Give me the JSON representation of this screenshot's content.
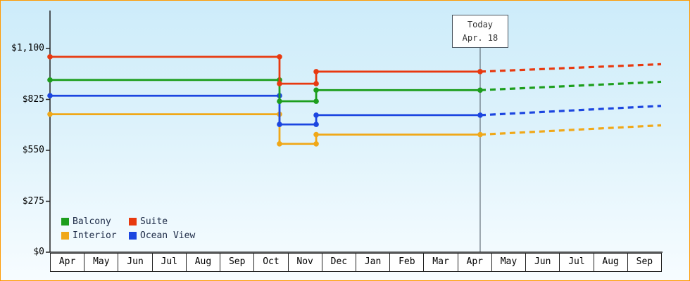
{
  "frame": {
    "border_color": "#ff9900",
    "background_top": "#cdecfa",
    "background_bottom": "#f7fcff"
  },
  "legend": {
    "items": [
      {
        "label": "Balcony",
        "color": "#1d9e1d"
      },
      {
        "label": "Suite",
        "color": "#e8390f"
      },
      {
        "label": "Interior",
        "color": "#f0a818"
      },
      {
        "label": "Ocean View",
        "color": "#1c46e0"
      }
    ]
  },
  "chart_data": {
    "type": "line",
    "subtype": "step-with-dashed-projection",
    "title": "",
    "xlabel": "",
    "ylabel": "",
    "x_axis": {
      "months": [
        "Apr",
        "May",
        "Jun",
        "Jul",
        "Aug",
        "Sep",
        "Oct",
        "Nov",
        "Dec",
        "Jan",
        "Feb",
        "Mar",
        "Apr",
        "May",
        "Jun",
        "Jul",
        "Aug",
        "Sep"
      ]
    },
    "y_axis": {
      "min": 0,
      "max": 1100,
      "ticks": [
        {
          "label": "$1,100",
          "value": 1100
        },
        {
          "label": "$825",
          "value": 825
        },
        {
          "label": "$550",
          "value": 550
        },
        {
          "label": "$275",
          "value": 275
        },
        {
          "label": "$0",
          "value": 0
        }
      ]
    },
    "today": {
      "line1": "Today",
      "line2": "Apr. 18",
      "month_position": 12.67
    },
    "change_points": {
      "first_drop_month": 6.76,
      "second_rise_month": 7.84
    },
    "series": [
      {
        "name": "Suite",
        "color": "#e8390f",
        "values": {
          "start": 1055,
          "after_drop": 910,
          "after_rise": 975,
          "projected_end": 1015
        }
      },
      {
        "name": "Balcony",
        "color": "#1d9e1d",
        "values": {
          "start": 930,
          "after_drop": 815,
          "after_rise": 875,
          "projected_end": 920
        }
      },
      {
        "name": "Ocean View",
        "color": "#1c46e0",
        "values": {
          "start": 845,
          "after_drop": 690,
          "after_rise": 740,
          "projected_end": 790
        }
      },
      {
        "name": "Interior",
        "color": "#f0a818",
        "values": {
          "start": 745,
          "after_drop": 585,
          "after_rise": 635,
          "projected_end": 685
        }
      }
    ]
  }
}
